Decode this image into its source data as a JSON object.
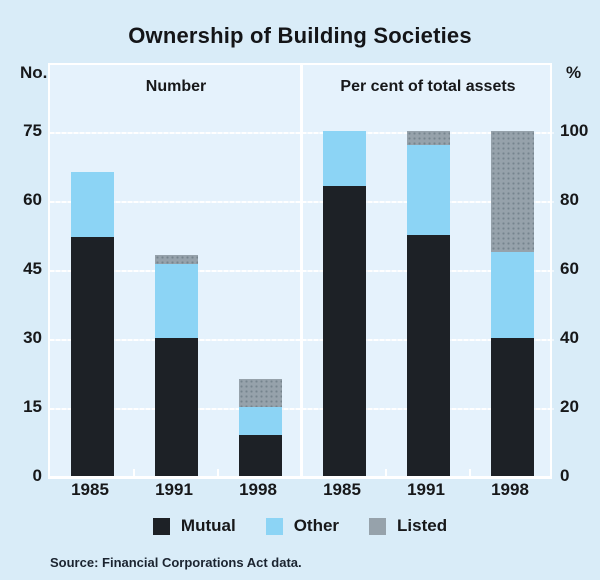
{
  "title": "Ownership of Building Societies",
  "left_axis_unit": "No.",
  "right_axis_unit": "%",
  "source": "Source: Financial Corporations Act data.",
  "legend": [
    {
      "label": "Mutual",
      "color": "#1d2126"
    },
    {
      "label": "Other",
      "color": "#8cd4f5"
    },
    {
      "label": "Listed",
      "color": "#96a2ab"
    }
  ],
  "colors": {
    "page_background": "#d9ecf8",
    "plot_background": "#e5f2fc",
    "gridline": "#ffffff",
    "mutual": "#1d2126",
    "other": "#8cd4f5",
    "listed": "#96a2ab",
    "listed_dot": "#75848e",
    "text": "#17181a"
  },
  "chart_data": [
    {
      "type": "bar",
      "stacked": true,
      "panel_title": "Number",
      "axis_side": "left",
      "axis_unit": "No.",
      "categories": [
        "1985",
        "1991",
        "1998"
      ],
      "series": [
        {
          "name": "Mutual",
          "values": [
            52,
            30,
            9
          ]
        },
        {
          "name": "Other",
          "values": [
            14,
            16,
            6
          ]
        },
        {
          "name": "Listed",
          "values": [
            0,
            2,
            6
          ]
        }
      ],
      "totals": [
        66,
        48,
        21
      ],
      "yticks": [
        0,
        15,
        30,
        45,
        60,
        75
      ],
      "ylim": [
        0,
        90
      ],
      "grid": true,
      "legend_position": "bottom"
    },
    {
      "type": "bar",
      "stacked": true,
      "panel_title": "Per cent of total assets",
      "axis_side": "right",
      "axis_unit": "%",
      "categories": [
        "1985",
        "1991",
        "1998"
      ],
      "series": [
        {
          "name": "Mutual",
          "values": [
            84,
            70,
            40
          ]
        },
        {
          "name": "Other",
          "values": [
            16,
            26,
            25
          ]
        },
        {
          "name": "Listed",
          "values": [
            0,
            4,
            35
          ]
        }
      ],
      "totals": [
        100,
        100,
        100
      ],
      "yticks": [
        0,
        20,
        40,
        60,
        80,
        100
      ],
      "ylim": [
        0,
        120
      ],
      "grid": true,
      "legend_position": "bottom"
    }
  ]
}
